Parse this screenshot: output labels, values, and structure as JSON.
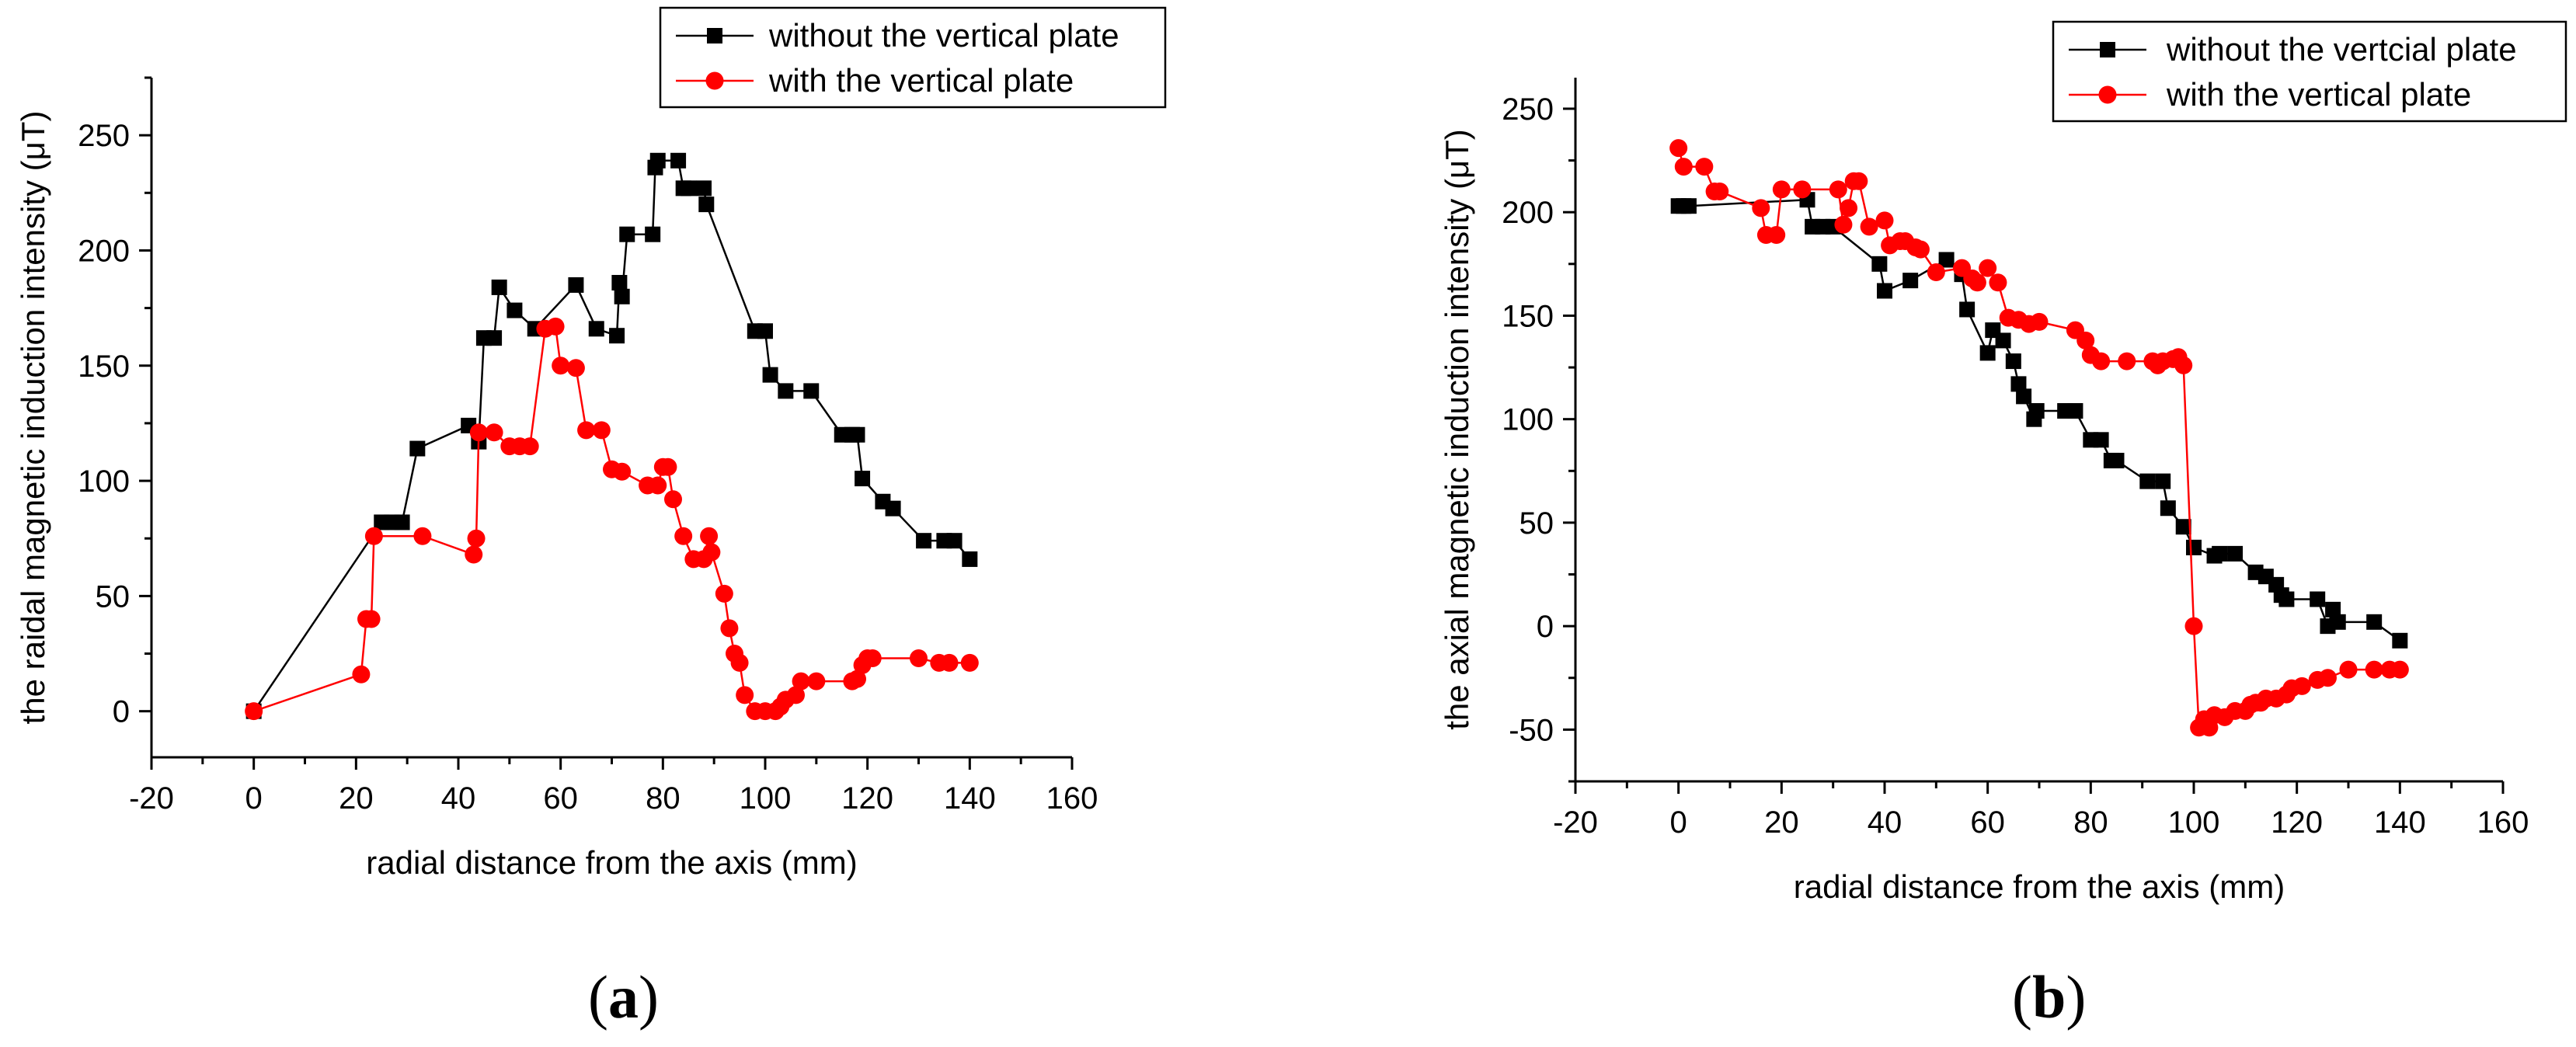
{
  "chart_data": [
    {
      "type": "line",
      "caption_letter": "a",
      "xlabel": "radial distance from the axis (mm)",
      "ylabel": "the raidal magnetic induction intensity (μT)",
      "xlim": [
        -20,
        160
      ],
      "ylim": [
        -20,
        275
      ],
      "xticks": [
        -20,
        0,
        20,
        40,
        60,
        80,
        100,
        120,
        140,
        160
      ],
      "yticks": [
        0,
        50,
        100,
        150,
        200,
        250
      ],
      "legend_position": "top-right",
      "series": [
        {
          "name": "without the vertical plate",
          "color": "#000000",
          "marker": "square",
          "x": [
            0,
            25,
            27,
            29,
            32,
            42,
            44,
            45,
            47,
            48,
            51,
            55,
            63,
            67,
            71,
            71.5,
            72,
            73,
            78,
            78.5,
            79,
            83,
            84,
            85,
            88,
            88.5,
            98,
            100,
            101,
            104,
            109,
            115,
            117,
            118,
            119,
            123,
            125,
            131,
            135,
            137,
            140
          ],
          "y": [
            0,
            82,
            82,
            82,
            114,
            124,
            117,
            162,
            162,
            184,
            174,
            166,
            185,
            166,
            163,
            186,
            180,
            207,
            207,
            236,
            239,
            239,
            227,
            227,
            227,
            220,
            165,
            165,
            146,
            139,
            139,
            120,
            120,
            120,
            101,
            91,
            88,
            74,
            74,
            74,
            66
          ]
        },
        {
          "name": "with the vertical plate",
          "color": "#ff0000",
          "marker": "circle",
          "x": [
            0,
            21,
            22,
            23,
            23.5,
            33,
            43,
            43.5,
            44,
            47,
            50,
            52,
            54,
            57,
            59,
            60,
            63,
            65,
            68,
            70,
            72,
            77,
            79,
            80,
            81,
            82,
            84,
            86,
            88,
            89,
            89.5,
            92,
            93,
            94,
            95,
            96,
            98,
            100,
            102,
            103,
            104,
            106,
            107,
            110,
            117,
            118,
            119,
            120,
            121,
            130,
            134,
            136,
            140
          ],
          "y": [
            0,
            16,
            40,
            40,
            76,
            76,
            68,
            75,
            121,
            121,
            115,
            115,
            115,
            166,
            167,
            150,
            149,
            122,
            122,
            105,
            104,
            98,
            98,
            106,
            106,
            92,
            76,
            66,
            66,
            76,
            69,
            51,
            36,
            25,
            21,
            7,
            0,
            0,
            0,
            2,
            5,
            7,
            13,
            13,
            13,
            14,
            20,
            23,
            23,
            23,
            21,
            21,
            21
          ]
        }
      ]
    },
    {
      "type": "line",
      "caption_letter": "b",
      "xlabel": "radial distance from the axis (mm)",
      "ylabel": "the axial magnetic induction intensity (μT)",
      "xlim": [
        -20,
        160
      ],
      "ylim": [
        -75,
        265
      ],
      "xticks": [
        -20,
        0,
        20,
        40,
        60,
        80,
        100,
        120,
        140,
        160
      ],
      "yticks": [
        -50,
        0,
        50,
        100,
        150,
        200,
        250
      ],
      "legend_position": "top-right",
      "series": [
        {
          "name": "without the vertcial plate",
          "color": "#000000",
          "marker": "square",
          "x": [
            0,
            1,
            2,
            25,
            26,
            28,
            30,
            39,
            40,
            45,
            52,
            55,
            56,
            60,
            61,
            63,
            65,
            66,
            67,
            69,
            69.5,
            75,
            77,
            80,
            82,
            84,
            85,
            91,
            94,
            95,
            98,
            100,
            104,
            105,
            108,
            112,
            114,
            116,
            117,
            118,
            124,
            126,
            127,
            128,
            135,
            140
          ],
          "y": [
            203,
            203,
            203,
            206,
            193,
            193,
            193,
            175,
            162,
            167,
            177,
            170,
            153,
            132,
            143,
            138,
            128,
            117,
            111,
            100,
            104,
            104,
            104,
            90,
            90,
            80,
            80,
            70,
            70,
            57,
            48,
            38,
            34,
            35,
            35,
            26,
            24,
            20,
            15,
            13,
            13,
            0,
            8,
            2,
            2,
            -7
          ]
        },
        {
          "name": "with the vertical plate",
          "color": "#ff0000",
          "marker": "circle",
          "x": [
            0,
            1,
            5,
            7,
            8,
            16,
            17,
            19,
            20,
            24,
            31,
            32,
            33,
            34,
            35,
            37,
            40,
            41,
            43,
            44,
            46,
            47,
            50,
            55,
            57,
            58,
            60,
            62,
            64,
            66,
            68,
            70,
            77,
            79,
            80,
            82,
            87,
            92,
            93,
            94,
            96,
            97,
            98,
            100,
            101,
            102,
            103,
            104,
            106,
            108,
            110,
            111,
            112,
            113,
            114,
            116,
            118,
            119,
            121,
            124,
            126,
            130,
            135,
            138,
            140
          ],
          "y": [
            231,
            222,
            222,
            210,
            210,
            202,
            189,
            189,
            211,
            211,
            211,
            194,
            202,
            215,
            215,
            193,
            196,
            184,
            186,
            186,
            183,
            182,
            171,
            173,
            168,
            166,
            173,
            166,
            149,
            148,
            146,
            147,
            143,
            138,
            131,
            128,
            128,
            128,
            126,
            128,
            129,
            130,
            126,
            0,
            -49,
            -45,
            -49,
            -43,
            -44,
            -41,
            -41,
            -38,
            -37,
            -37,
            -35,
            -35,
            -33,
            -30,
            -29,
            -26,
            -25,
            -21,
            -21,
            -21,
            -21
          ]
        }
      ]
    }
  ]
}
